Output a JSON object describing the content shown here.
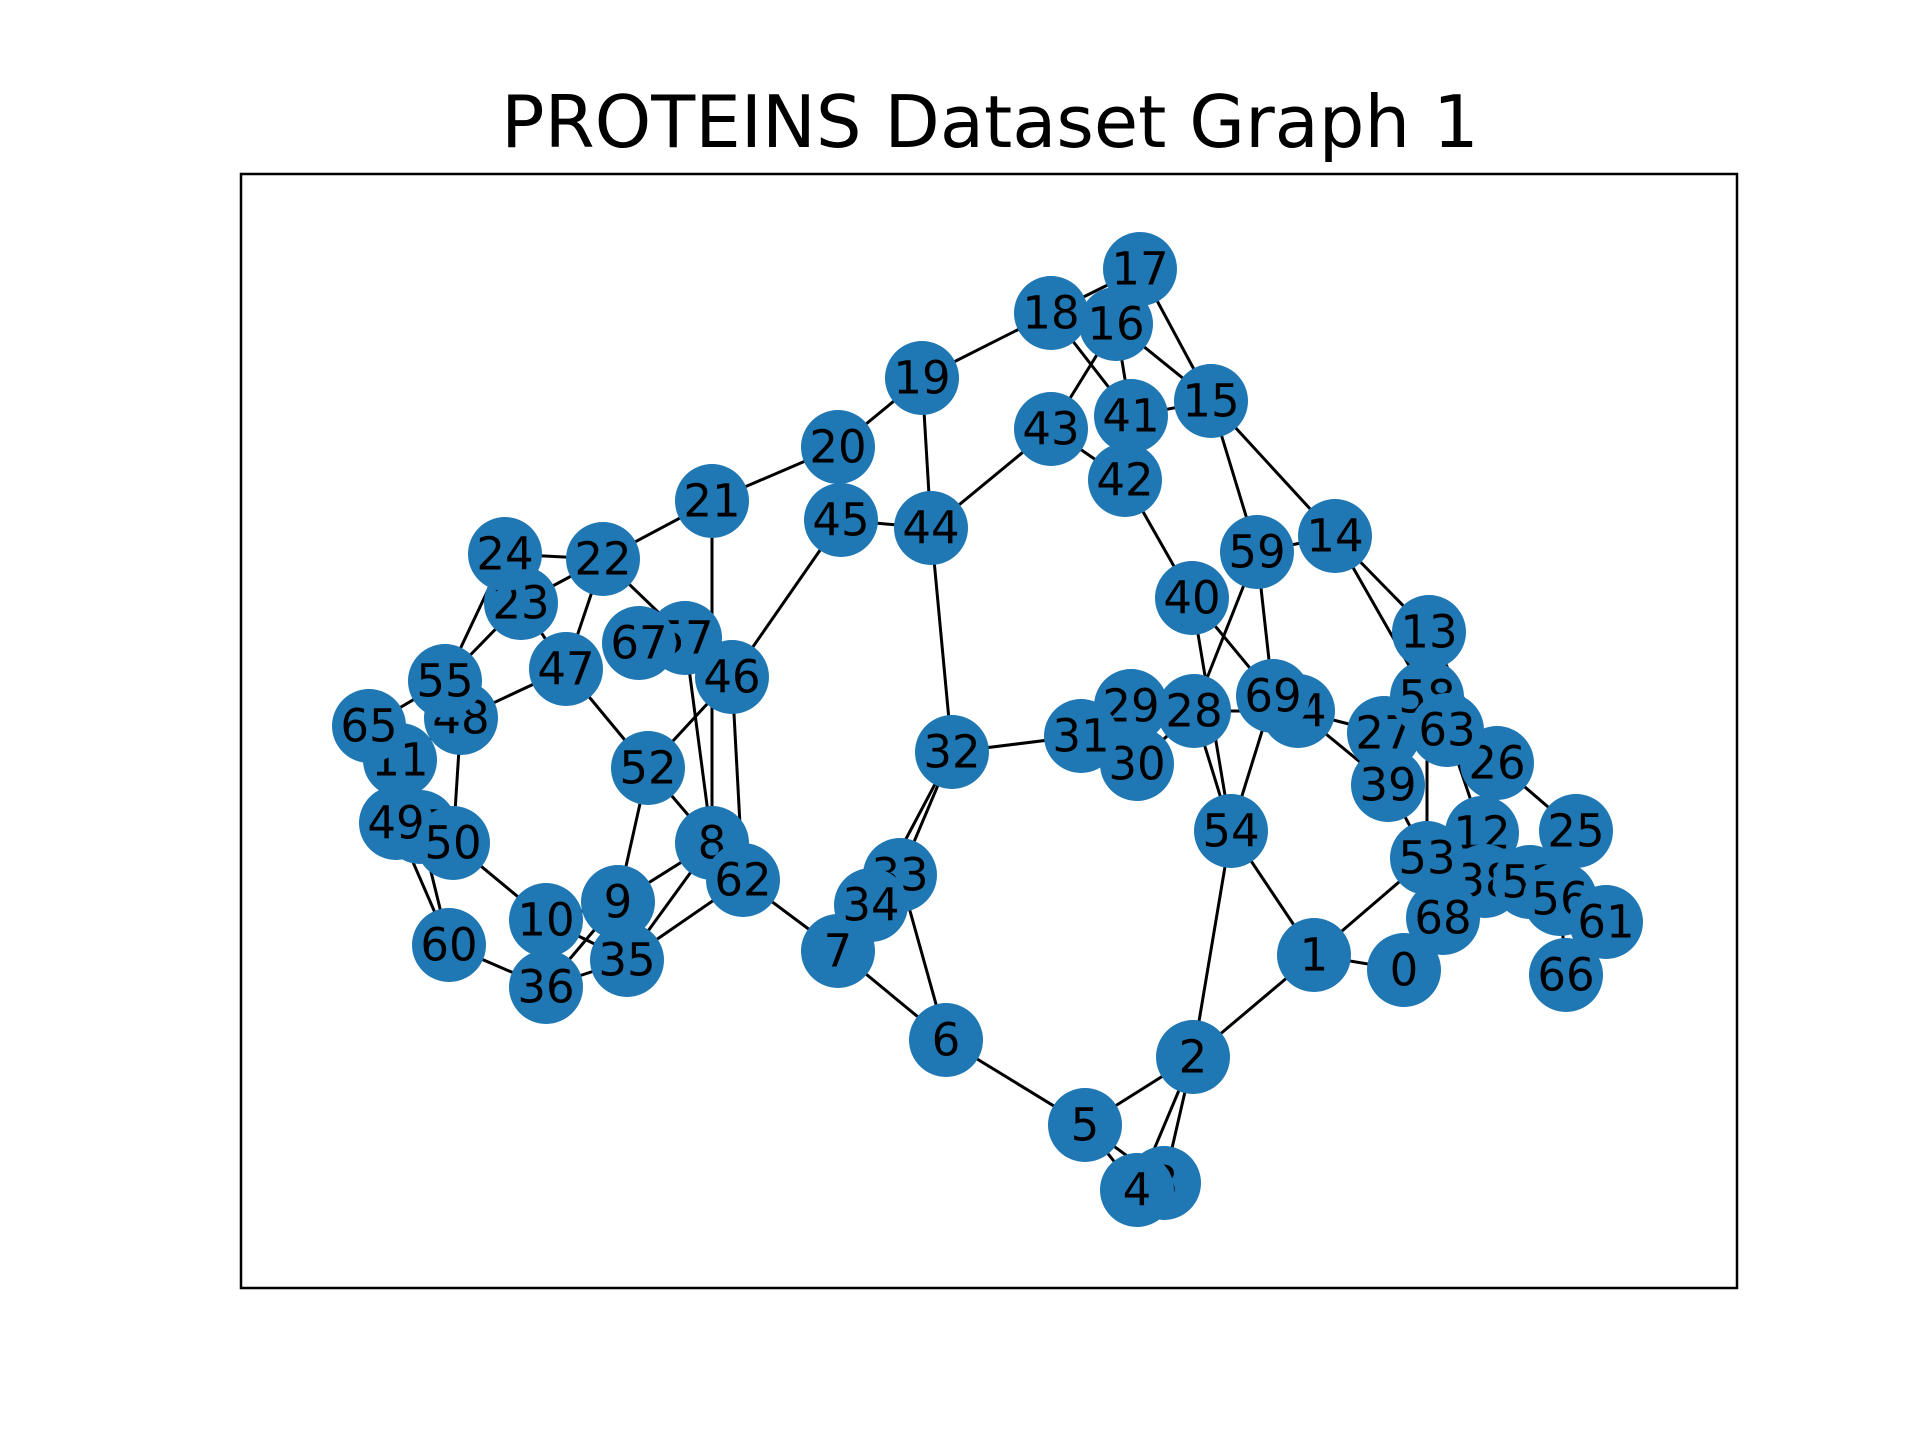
{
  "title": "PROTEINS Dataset Graph 1",
  "colors": {
    "node": "#1f77b4",
    "edge": "#000000",
    "frame": "#000000",
    "background": "#ffffff"
  },
  "graph": {
    "nodes": [
      "0",
      "1",
      "2",
      "3",
      "4",
      "5",
      "6",
      "7",
      "8",
      "9",
      "10",
      "11",
      "12",
      "13",
      "14",
      "15",
      "16",
      "17",
      "18",
      "19",
      "20",
      "21",
      "22",
      "23",
      "24",
      "25",
      "26",
      "27",
      "28",
      "29",
      "30",
      "31",
      "32",
      "33",
      "34",
      "35",
      "36",
      "37",
      "38",
      "39",
      "40",
      "41",
      "42",
      "43",
      "44",
      "45",
      "46",
      "47",
      "48",
      "49",
      "50",
      "51",
      "52",
      "53",
      "54",
      "55",
      "56",
      "57",
      "58",
      "59",
      "60",
      "61",
      "62",
      "63",
      "64",
      "65",
      "66",
      "67",
      "68",
      "69"
    ],
    "edges": [
      [
        "0",
        "1"
      ],
      [
        "1",
        "2"
      ],
      [
        "1",
        "53"
      ],
      [
        "1",
        "54"
      ],
      [
        "2",
        "5"
      ],
      [
        "2",
        "3"
      ],
      [
        "2",
        "4"
      ],
      [
        "2",
        "54"
      ],
      [
        "3",
        "5"
      ],
      [
        "4",
        "5"
      ],
      [
        "5",
        "6"
      ],
      [
        "6",
        "7"
      ],
      [
        "6",
        "33"
      ],
      [
        "7",
        "34"
      ],
      [
        "7",
        "62"
      ],
      [
        "7",
        "33"
      ],
      [
        "33",
        "32"
      ],
      [
        "34",
        "32"
      ],
      [
        "32",
        "31"
      ],
      [
        "32",
        "44"
      ],
      [
        "31",
        "29"
      ],
      [
        "29",
        "28"
      ],
      [
        "28",
        "30"
      ],
      [
        "28",
        "54"
      ],
      [
        "28",
        "59"
      ],
      [
        "28",
        "64"
      ],
      [
        "54",
        "40"
      ],
      [
        "54",
        "69"
      ],
      [
        "40",
        "42"
      ],
      [
        "40",
        "69"
      ],
      [
        "42",
        "43"
      ],
      [
        "41",
        "42"
      ],
      [
        "41",
        "16"
      ],
      [
        "41",
        "15"
      ],
      [
        "43",
        "44"
      ],
      [
        "43",
        "16"
      ],
      [
        "44",
        "45"
      ],
      [
        "44",
        "19"
      ],
      [
        "45",
        "20"
      ],
      [
        "45",
        "46"
      ],
      [
        "19",
        "20"
      ],
      [
        "19",
        "18"
      ],
      [
        "18",
        "17"
      ],
      [
        "18",
        "41"
      ],
      [
        "16",
        "15"
      ],
      [
        "17",
        "15"
      ],
      [
        "15",
        "14"
      ],
      [
        "15",
        "59"
      ],
      [
        "59",
        "14"
      ],
      [
        "59",
        "69"
      ],
      [
        "14",
        "13"
      ],
      [
        "14",
        "58"
      ],
      [
        "13",
        "26"
      ],
      [
        "64",
        "27"
      ],
      [
        "64",
        "39"
      ],
      [
        "27",
        "58"
      ],
      [
        "27",
        "63"
      ],
      [
        "63",
        "26"
      ],
      [
        "58",
        "53"
      ],
      [
        "39",
        "53"
      ],
      [
        "63",
        "12"
      ],
      [
        "12",
        "38"
      ],
      [
        "12",
        "53"
      ],
      [
        "26",
        "25"
      ],
      [
        "25",
        "51"
      ],
      [
        "38",
        "51"
      ],
      [
        "51",
        "56"
      ],
      [
        "56",
        "61"
      ],
      [
        "56",
        "66"
      ],
      [
        "53",
        "68"
      ],
      [
        "68",
        "38"
      ],
      [
        "20",
        "21"
      ],
      [
        "21",
        "22"
      ],
      [
        "21",
        "8"
      ],
      [
        "22",
        "24"
      ],
      [
        "22",
        "23"
      ],
      [
        "22",
        "47"
      ],
      [
        "22",
        "57"
      ],
      [
        "24",
        "55"
      ],
      [
        "23",
        "55"
      ],
      [
        "23",
        "47"
      ],
      [
        "55",
        "65"
      ],
      [
        "55",
        "48"
      ],
      [
        "47",
        "48"
      ],
      [
        "47",
        "52"
      ],
      [
        "67",
        "57"
      ],
      [
        "57",
        "46"
      ],
      [
        "57",
        "8"
      ],
      [
        "46",
        "52"
      ],
      [
        "46",
        "62"
      ],
      [
        "52",
        "8"
      ],
      [
        "52",
        "9"
      ],
      [
        "8",
        "62"
      ],
      [
        "8",
        "9"
      ],
      [
        "8",
        "35"
      ],
      [
        "62",
        "35"
      ],
      [
        "9",
        "10"
      ],
      [
        "9",
        "36"
      ],
      [
        "35",
        "36"
      ],
      [
        "35",
        "10"
      ],
      [
        "10",
        "50"
      ],
      [
        "36",
        "60"
      ],
      [
        "60",
        "49"
      ],
      [
        "60",
        "37"
      ],
      [
        "49",
        "11"
      ],
      [
        "11",
        "65"
      ],
      [
        "11",
        "48"
      ],
      [
        "48",
        "50"
      ],
      [
        "50",
        "37"
      ],
      [
        "37",
        "49"
      ]
    ]
  }
}
